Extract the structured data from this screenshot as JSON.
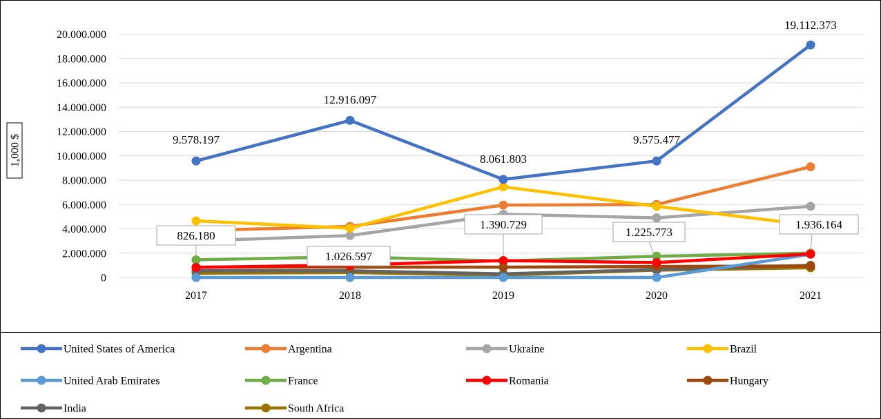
{
  "chart_data": {
    "type": "line",
    "title": "",
    "xlabel": "",
    "ylabel": "1,000 $",
    "categories": [
      "2017",
      "2018",
      "2019",
      "2020",
      "2021"
    ],
    "ylim": [
      0,
      20000000
    ],
    "yticks": [
      "0",
      "2.000.000",
      "4.000.000",
      "6.000.000",
      "8.000.000",
      "10.000.000",
      "12.000.000",
      "14.000.000",
      "16.000.000",
      "18.000.000",
      "20.000.000"
    ],
    "grid": true,
    "legend": "bottom",
    "series": [
      {
        "name": "United States of America",
        "color": "#4472C4",
        "values": [
          9578197,
          12916097,
          8061803,
          9575477,
          19112373
        ]
      },
      {
        "name": "Argentina",
        "color": "#ED7D31",
        "values": [
          3850000,
          4200000,
          5950000,
          6000000,
          9100000
        ]
      },
      {
        "name": "Ukraine",
        "color": "#A5A5A5",
        "values": [
          3000000,
          3450000,
          5200000,
          4900000,
          5850000
        ]
      },
      {
        "name": "Brazil",
        "color": "#FFC000",
        "values": [
          4650000,
          4050000,
          7450000,
          5850000,
          4300000
        ]
      },
      {
        "name": "United Arab Emirates",
        "color": "#5B9BD5",
        "values": [
          0,
          0,
          0,
          0,
          1900000
        ]
      },
      {
        "name": "France",
        "color": "#70AD47",
        "values": [
          1450000,
          1700000,
          1350000,
          1750000,
          2000000
        ]
      },
      {
        "name": "Romania",
        "color": "#FF0000",
        "values": [
          826180,
          1026597,
          1390729,
          1225773,
          1936164
        ]
      },
      {
        "name": "Hungary",
        "color": "#9E480E",
        "values": [
          850000,
          850000,
          850000,
          900000,
          950000
        ]
      },
      {
        "name": "India",
        "color": "#636363",
        "values": [
          550000,
          550000,
          300000,
          650000,
          1000000
        ]
      },
      {
        "name": "South Africa",
        "color": "#997300",
        "values": [
          350000,
          400000,
          200000,
          600000,
          800000
        ]
      }
    ],
    "annotations": {
      "usa_labels": [
        "9.578.197",
        "12.916.097",
        "8.061.803",
        "9.575.477",
        "19.112.373"
      ],
      "romania_labels": [
        "826.180",
        "1.026.597",
        "1.390.729",
        "1.225.773",
        "1.936.164"
      ]
    }
  }
}
